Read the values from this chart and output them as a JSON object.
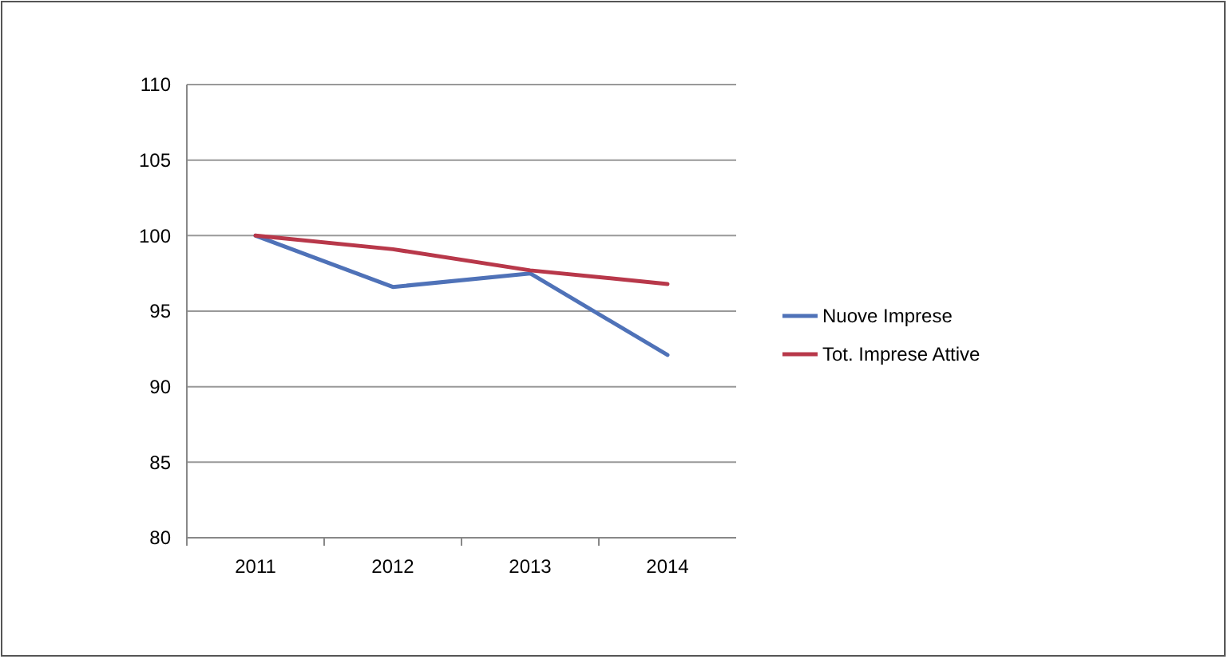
{
  "chart_data": {
    "type": "line",
    "categories": [
      "2011",
      "2012",
      "2013",
      "2014"
    ],
    "series": [
      {
        "name": "Nuove Imprese",
        "color": "#4f72b8",
        "values": [
          100,
          96.6,
          97.5,
          92.1
        ]
      },
      {
        "name": "Tot. Imprese Attive",
        "color": "#b8384a",
        "values": [
          100,
          99.1,
          97.7,
          96.8
        ]
      }
    ],
    "ylim": [
      80,
      110
    ],
    "yticks": [
      80,
      85,
      90,
      95,
      100,
      105,
      110
    ],
    "grid": "y",
    "legend": "right",
    "marker": "none",
    "line_style": "solid"
  }
}
